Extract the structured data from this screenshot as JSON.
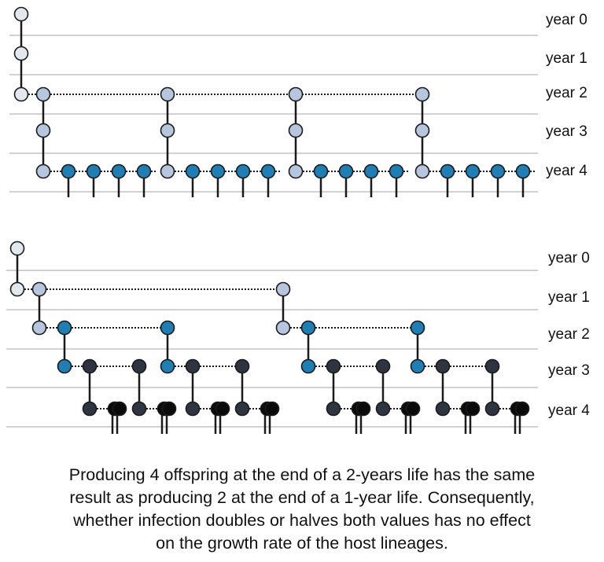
{
  "colors": {
    "background": "#ffffff",
    "gridline": "#b8b8b8",
    "lineage_line": "#1a1a1a",
    "year_0_1_node": "#e3e7ee",
    "year_2_node": "#b6c6de",
    "offspring_node": "#1f7fb5",
    "adult_dark_node": "#2e3440",
    "newborn_node": "#0a0a0a",
    "node_outline": "#1b1b1b"
  },
  "panels": [
    {
      "id": "top",
      "scenario": "4 offspring at the end of a 2-year life",
      "rows": [
        {
          "label": "year 0"
        },
        {
          "label": "year 1"
        },
        {
          "label": "year 2"
        },
        {
          "label": "year 3"
        },
        {
          "label": "year 4"
        }
      ]
    },
    {
      "id": "bottom",
      "scenario": "2 offspring at the end of a 1-year life",
      "rows": [
        {
          "label": "year 0"
        },
        {
          "label": "year 1"
        },
        {
          "label": "year 2"
        },
        {
          "label": "year 3"
        },
        {
          "label": "year 4"
        }
      ]
    }
  ],
  "caption": {
    "lines": [
      "Producing 4 offspring at the end of a 2-years life has the same",
      "result as producing 2 at the end of a 1-year life. Consequently,",
      "whether infection doubles or halves both values has no effect",
      "on the growth rate of the host lineages."
    ]
  }
}
